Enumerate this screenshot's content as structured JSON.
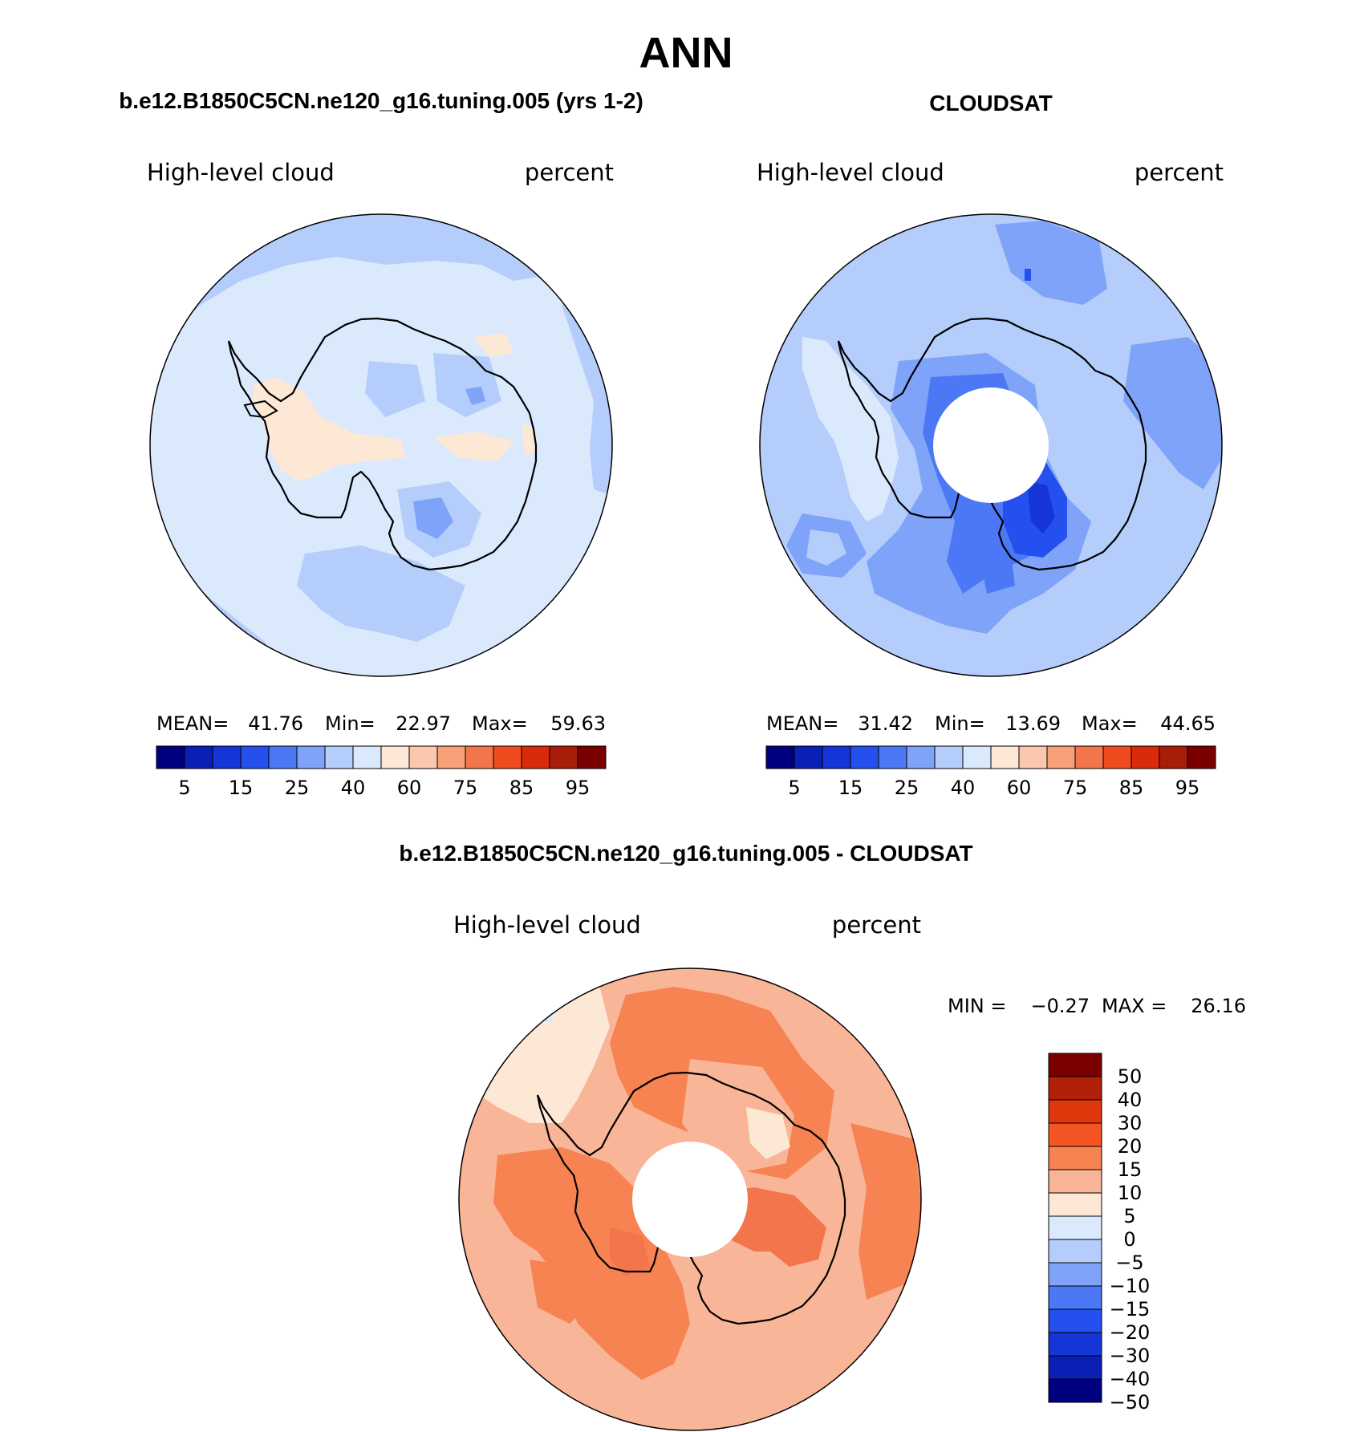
{
  "figure": {
    "season": "ANN",
    "variable": "High-level cloud",
    "units": "percent"
  },
  "panels": [
    {
      "id": "model",
      "title": "b.e12.B1850C5CN.ne120_g16.tuning.005 (yrs 1-2)",
      "variable": "High-level cloud",
      "units": "percent",
      "stats": {
        "mean_label": "MEAN=",
        "mean": "41.76",
        "min_label": "Min=",
        "min": "22.97",
        "max_label": "Max=",
        "max": "59.63"
      },
      "colorbar": {
        "colors": [
          "#00007f",
          "#0a1fb3",
          "#1535d8",
          "#2550f0",
          "#4d78f5",
          "#7ea3f8",
          "#b4cdfb",
          "#dbe9fd",
          "#fde8d6",
          "#fbc8ad",
          "#f7a07a",
          "#f3754b",
          "#ef4b1f",
          "#d92b0c",
          "#a81d08",
          "#7a0000"
        ],
        "tick_labels": [
          "5",
          "15",
          "25",
          "40",
          "60",
          "75",
          "85",
          "95"
        ]
      }
    },
    {
      "id": "obs",
      "title": "CLOUDSAT",
      "variable": "High-level cloud",
      "units": "percent",
      "stats": {
        "mean_label": "MEAN=",
        "mean": "31.42",
        "min_label": "Min=",
        "min": "13.69",
        "max_label": "Max=",
        "max": "44.65"
      },
      "colorbar": {
        "colors": [
          "#00007f",
          "#0a1fb3",
          "#1535d8",
          "#2550f0",
          "#4d78f5",
          "#7ea3f8",
          "#b4cdfb",
          "#dbe9fd",
          "#fde8d6",
          "#fbc8ad",
          "#f7a07a",
          "#f3754b",
          "#ef4b1f",
          "#d92b0c",
          "#a81d08",
          "#7a0000"
        ],
        "tick_labels": [
          "5",
          "15",
          "25",
          "40",
          "60",
          "75",
          "85",
          "95"
        ]
      }
    },
    {
      "id": "diff",
      "title": "b.e12.B1850C5CN.ne120_g16.tuning.005 - CLOUDSAT",
      "variable": "High-level cloud",
      "units": "percent",
      "stats": {
        "min_label": "MIN =",
        "min": "−0.27",
        "max_label": "MAX =",
        "max": "26.16"
      },
      "colorbar": {
        "colors_top_to_bottom": [
          "#7a0000",
          "#b32008",
          "#e0380c",
          "#f55522",
          "#f78252",
          "#f9b597",
          "#fde8d6",
          "#dbe9fd",
          "#b4cdfb",
          "#7ea3f8",
          "#4d78f5",
          "#2550f0",
          "#1535d8",
          "#0a1fb3",
          "#00007f"
        ],
        "tick_labels": [
          "50",
          "40",
          "30",
          "20",
          "15",
          "10",
          "5",
          "0",
          "−5",
          "−10",
          "−15",
          "−20",
          "−30",
          "−40",
          "−50"
        ]
      }
    }
  ]
}
